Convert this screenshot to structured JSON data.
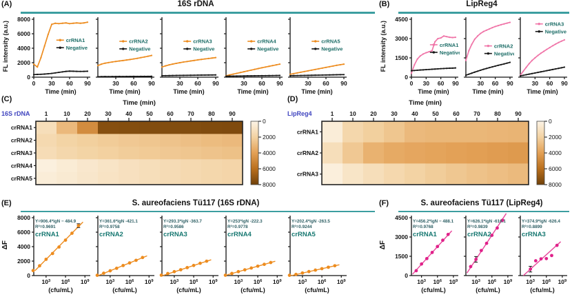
{
  "colors": {
    "orange": "#ED8C1F",
    "pink_line": "#F075A8",
    "magenta": "#E0218A",
    "magenta_line": "#E8479B",
    "black_series": "#161616",
    "teal_rule": "#3C9EA0",
    "legend_text": "#1E6E68",
    "equation_text": "#2F6065",
    "crRNA_label": "#157770",
    "gene_label": "#3F44BF",
    "axis": "#111111"
  },
  "chart_data": {
    "A": {
      "type": "line",
      "label": "(A)",
      "title": "16S rDNA",
      "ylabel": "FL intensity (a.u.)",
      "xlabel": "Time (min)",
      "ylim": [
        0,
        8000
      ],
      "yticks": [
        0,
        2000,
        4000,
        6000,
        8000
      ],
      "xlim": [
        0,
        90
      ],
      "xticks": [
        0,
        30,
        60,
        90
      ],
      "x": [
        0,
        6,
        12,
        18,
        24,
        30,
        36,
        42,
        48,
        54,
        60,
        66,
        72,
        78,
        84,
        90
      ],
      "subplots": [
        {
          "legend_x": 0.42,
          "legend_y": 0.36,
          "series": [
            {
              "name": "crRNA1",
              "color": "#ED8C1F",
              "y": [
                1800,
                1400,
                2700,
                4300,
                5900,
                7300,
                7450,
                7400,
                7450,
                7500,
                7400,
                7450,
                7500,
                7450,
                7500,
                7600
              ]
            },
            {
              "name": "Negative",
              "color": "#161616",
              "y": [
                350,
                380,
                400,
                430,
                470,
                520,
                590,
                660,
                730,
                800,
                830,
                820,
                800,
                790,
                800,
                820
              ]
            }
          ]
        },
        {
          "legend_x": 0.4,
          "legend_y": 0.38,
          "series": [
            {
              "name": "crRNA2",
              "color": "#ED8C1F",
              "y": [
                1600,
                1800,
                1930,
                2020,
                2100,
                2170,
                2240,
                2300,
                2370,
                2440,
                2520,
                2600,
                2700,
                2790,
                2890,
                3000
              ]
            },
            {
              "name": "Negative",
              "color": "#161616",
              "y": [
                60,
                70,
                80,
                75,
                85,
                90,
                95,
                90,
                100,
                95,
                105,
                100,
                110,
                105,
                115,
                120
              ]
            }
          ]
        },
        {
          "legend_x": 0.4,
          "legend_y": 0.38,
          "series": [
            {
              "name": "crRNA3",
              "color": "#ED8C1F",
              "y": [
                1400,
                1560,
                1700,
                1810,
                1910,
                2000,
                2090,
                2160,
                2240,
                2310,
                2390,
                2450,
                2520,
                2580,
                2640,
                2700
              ]
            },
            {
              "name": "Negative",
              "color": "#161616",
              "y": [
                200,
                210,
                215,
                225,
                235,
                245,
                250,
                258,
                263,
                270,
                278,
                285,
                290,
                296,
                302,
                310
              ]
            }
          ]
        },
        {
          "legend_x": 0.4,
          "legend_y": 0.38,
          "series": [
            {
              "name": "crRNA4",
              "color": "#ED8C1F",
              "y": [
                200,
                310,
                420,
                530,
                640,
                750,
                860,
                970,
                1080,
                1190,
                1300,
                1400,
                1500,
                1600,
                1700,
                1800
              ]
            },
            {
              "name": "Negative",
              "color": "#161616",
              "y": [
                130,
                140,
                148,
                155,
                162,
                170,
                176,
                182,
                190,
                196,
                202,
                210,
                216,
                222,
                230,
                240
              ]
            }
          ]
        },
        {
          "legend_x": 0.4,
          "legend_y": 0.38,
          "series": [
            {
              "name": "crRNA5",
              "color": "#ED8C1F",
              "y": [
                400,
                495,
                590,
                685,
                780,
                875,
                970,
                1065,
                1160,
                1255,
                1350,
                1445,
                1540,
                1640,
                1720,
                1800
              ]
            },
            {
              "name": "Negative",
              "color": "#161616",
              "y": [
                200,
                212,
                222,
                232,
                242,
                252,
                262,
                272,
                282,
                292,
                302,
                312,
                322,
                332,
                342,
                352
              ]
            }
          ]
        }
      ]
    },
    "B": {
      "type": "line",
      "label": "(B)",
      "title": "LipReg4",
      "ylabel": "FL intensity (a.u.)",
      "xlabel": "Time (min)",
      "ylim": [
        0,
        4500
      ],
      "yticks": [
        0,
        1500,
        3000,
        4500
      ],
      "xlim": [
        0,
        90
      ],
      "xticks": [
        0,
        30,
        60,
        90
      ],
      "x": [
        0,
        6,
        12,
        18,
        24,
        30,
        36,
        42,
        48,
        54,
        60,
        66,
        72,
        78,
        84,
        90
      ],
      "subplots": [
        {
          "legend_x": 0.42,
          "legend_y": 0.44,
          "series": [
            {
              "name": "crRNA1",
              "color": "#F075A8",
              "y": [
                300,
                950,
                1400,
                1650,
                1800,
                1900,
                1980,
                2050,
                2750,
                3000,
                3050,
                3200,
                3150,
                3100,
                3080,
                3100
              ]
            },
            {
              "name": "Negative",
              "color": "#161616",
              "y": [
                500,
                520,
                540,
                555,
                570,
                585,
                600,
                615,
                630,
                645,
                660,
                672,
                685,
                695,
                705,
                715
              ]
            }
          ]
        },
        {
          "legend_x": 0.42,
          "legend_y": 0.46,
          "series": [
            {
              "name": "crRNA2",
              "color": "#F075A8",
              "y": [
                1300,
                2050,
                2550,
                2950,
                3200,
                3400,
                3550,
                3650,
                3750,
                3850,
                3940,
                4010,
                4080,
                4140,
                4200,
                4260
              ]
            },
            {
              "name": "Negative",
              "color": "#161616",
              "y": [
                150,
                230,
                310,
                390,
                465,
                540,
                610,
                675,
                740,
                800,
                860,
                920,
                975,
                1030,
                1090,
                1150
              ]
            }
          ]
        },
        {
          "legend_x": 0.34,
          "legend_y": 0.08,
          "series": [
            {
              "name": "crRNA3",
              "color": "#F075A8",
              "y": [
                150,
                460,
                760,
                1050,
                1300,
                1500,
                1690,
                1860,
                2010,
                2160,
                2300,
                2440,
                2570,
                2690,
                2800,
                2900
              ]
            },
            {
              "name": "Negative",
              "color": "#161616",
              "y": [
                100,
                145,
                190,
                235,
                280,
                325,
                370,
                415,
                460,
                505,
                550,
                595,
                640,
                685,
                730,
                780
              ]
            }
          ]
        }
      ]
    },
    "C": {
      "type": "heatmap",
      "label": "(C)",
      "gene": "16S rDNA",
      "title": "Time (min)",
      "cols": [
        1,
        10,
        20,
        30,
        40,
        50,
        60,
        70,
        80,
        90
      ],
      "rows": [
        "crRNA1",
        "crRNA2",
        "crRNA3",
        "crRNA4",
        "crRNA5"
      ],
      "values": [
        [
          1300,
          3000,
          4800,
          7400,
          7450,
          7500,
          7500,
          7500,
          7550,
          7600
        ],
        [
          1600,
          1900,
          2100,
          2250,
          2400,
          2500,
          2600,
          2750,
          2900,
          3000
        ],
        [
          1400,
          1700,
          1900,
          2050,
          2200,
          2300,
          2400,
          2500,
          2600,
          2700
        ],
        [
          250,
          500,
          750,
          950,
          1150,
          1300,
          1450,
          1600,
          1700,
          1800
        ],
        [
          400,
          600,
          800,
          1000,
          1150,
          1300,
          1450,
          1600,
          1700,
          1800
        ]
      ],
      "scale": {
        "min": 0,
        "max": 8000,
        "ticks": [
          0,
          2000,
          4000,
          6000,
          8000
        ],
        "stops": [
          [
            0,
            "#FCF4E6"
          ],
          [
            2000,
            "#F3D2A2"
          ],
          [
            4000,
            "#E3A055"
          ],
          [
            6000,
            "#B96F1D"
          ],
          [
            8000,
            "#70410A"
          ]
        ]
      }
    },
    "D": {
      "type": "heatmap",
      "label": "(D)",
      "gene": "LipReg4",
      "title": "Time (min)",
      "cols": [
        1,
        10,
        20,
        30,
        40,
        50,
        60,
        70,
        80,
        90
      ],
      "rows": [
        "crRNA1",
        "crRNA2",
        "crRNA3"
      ],
      "values": [
        [
          400,
          1700,
          2100,
          2500,
          3000,
          3100,
          3100,
          3100,
          3150,
          3200
        ],
        [
          1300,
          2400,
          3300,
          3600,
          3750,
          3850,
          3950,
          4050,
          4150,
          4250
        ],
        [
          300,
          900,
          1300,
          1650,
          1950,
          2200,
          2450,
          2650,
          2800,
          2950
        ]
      ],
      "scale": {
        "min": 0,
        "max": 8000,
        "ticks": [
          0,
          2000,
          4000,
          6000,
          8000
        ],
        "stops": [
          [
            0,
            "#FCF4E6"
          ],
          [
            2000,
            "#F3D2A2"
          ],
          [
            4000,
            "#E3A055"
          ],
          [
            6000,
            "#B96F1D"
          ],
          [
            8000,
            "#70410A"
          ]
        ]
      }
    },
    "E": {
      "type": "scatter",
      "label": "(E)",
      "title": "S. aureofaciens Tü117 (16S rDNA)",
      "ylabel": "ΔF",
      "xlabel": "(cfu/mL)",
      "ylim": [
        0,
        8000
      ],
      "yticks": [
        0,
        2000,
        4000,
        6000,
        8000
      ],
      "xexp": [
        3,
        6,
        9
      ],
      "subplots": [
        {
          "name": "crRNA1",
          "eq": "Y=906.4*lgN − 484.9",
          "r2": "R²=0.9691",
          "slope": 906.4,
          "intercept": -484.9,
          "lg": [
            1,
            2,
            3,
            4,
            5,
            6,
            7,
            8
          ],
          "y": [
            700,
            1350,
            2250,
            3050,
            3950,
            4900,
            5850,
            6900
          ],
          "err": {
            "7": 260
          }
        },
        {
          "name": "crRNA2",
          "eq": "Y=361.6*lgN -421.1",
          "r2": "R²=0.9758",
          "slope": 361.6,
          "intercept": -421.1,
          "lg": [
            1,
            2,
            3,
            4,
            5,
            6,
            7,
            8
          ],
          "y": [
            40,
            330,
            660,
            1010,
            1390,
            1750,
            2110,
            2500
          ]
        },
        {
          "name": "crRNA3",
          "eq": "Y=293.3*lgN -363.7",
          "r2": "R²=0.9586",
          "slope": 293.3,
          "intercept": -363.7,
          "lg": [
            1,
            2,
            3,
            4,
            5,
            6,
            7,
            8
          ],
          "y": [
            60,
            280,
            540,
            810,
            1100,
            1400,
            1700,
            1990
          ]
        },
        {
          "name": "crRNA4",
          "eq": "Y=253*lgN -222.3",
          "r2": "R²=0.9778",
          "slope": 253,
          "intercept": -222.3,
          "lg": [
            1,
            2,
            3,
            4,
            5,
            6,
            7,
            8
          ],
          "y": [
            50,
            290,
            545,
            795,
            1045,
            1300,
            1555,
            1805
          ]
        },
        {
          "name": "crRNA5",
          "eq": "Y=202.4*lgN -263.5",
          "r2": "R²=0.9244",
          "slope": 202.4,
          "intercept": -263.5,
          "lg": [
            1,
            2,
            3,
            4,
            5,
            6,
            7,
            8
          ],
          "y": [
            40,
            160,
            360,
            555,
            755,
            955,
            1155,
            1360
          ]
        }
      ]
    },
    "F": {
      "type": "scatter",
      "label": "(F)",
      "title": "S. aureofaciens Tü117 (LipReg4)",
      "ylabel": "ΔF",
      "xlabel": "(cfu/mL)",
      "ylim": [
        0,
        4500
      ],
      "yticks": [
        0,
        1500,
        3000,
        4500
      ],
      "xexp": [
        3,
        6,
        9
      ],
      "subplots": [
        {
          "name": "crRNA1",
          "eq": "Y=456.2*lgN − 488.1",
          "r2": "R²=0.9768",
          "slope": 456.2,
          "intercept": -488.1,
          "lg": [
            2,
            3,
            4,
            5,
            6,
            7,
            8
          ],
          "y": [
            380,
            900,
            1320,
            1800,
            2260,
            2750,
            3200
          ]
        },
        {
          "name": "crRNA2",
          "eq": "Y=626.1*lgN -616.1",
          "r2": "R²=0.9839",
          "slope": 626.1,
          "intercept": -616.1,
          "lg": [
            2,
            3,
            4,
            5,
            6,
            7,
            8
          ],
          "y": [
            700,
            1260,
            1950,
            2510,
            3130,
            3700,
            4300
          ],
          "err": {
            "1": 220
          }
        },
        {
          "name": "crRNA3",
          "eq": "Y=374.9*lgN -626.4",
          "r2": "R²=0.8899",
          "slope": 374.9,
          "intercept": -626.4,
          "lg": [
            3,
            4,
            5,
            6,
            7,
            8
          ],
          "y": [
            500,
            1150,
            1300,
            1320,
            1560,
            2350
          ],
          "err": {
            "0": 220
          }
        }
      ]
    }
  }
}
